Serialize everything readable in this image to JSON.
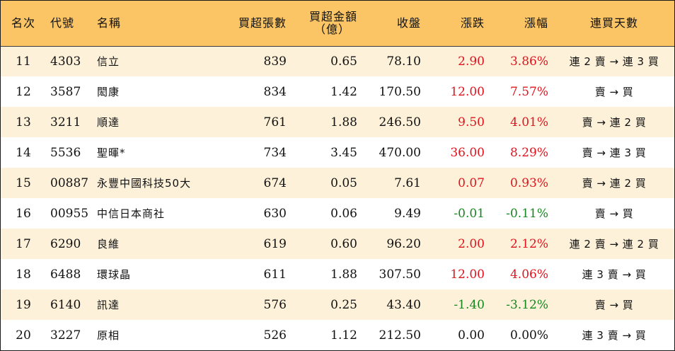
{
  "colors": {
    "header_bg": "#fbc566",
    "odd_row_bg": "#fdf1d9",
    "even_row_bg": "#ffffff",
    "up": "#e0141e",
    "down": "#16871f",
    "flat": "#111111"
  },
  "header": {
    "rank": "名次",
    "code": "代號",
    "name": "名稱",
    "net_lots": "買超張數",
    "net_amount_line1": "買超金額",
    "net_amount_line2": "（億）",
    "close": "收盤",
    "change": "漲跌",
    "change_pct": "漲幅",
    "streak": "連買天數"
  },
  "rows": [
    {
      "rank": "11",
      "code": "4303",
      "name": "信立",
      "net_lots": "839",
      "net_amount": "0.65",
      "close": "78.10",
      "change": "2.90",
      "change_pct": "3.86%",
      "direction": "up",
      "streak": "連 2 賣 → 連 3 買"
    },
    {
      "rank": "12",
      "code": "3587",
      "name": "閎康",
      "net_lots": "834",
      "net_amount": "1.42",
      "close": "170.50",
      "change": "12.00",
      "change_pct": "7.57%",
      "direction": "up",
      "streak": "賣 → 買"
    },
    {
      "rank": "13",
      "code": "3211",
      "name": "順達",
      "net_lots": "761",
      "net_amount": "1.88",
      "close": "246.50",
      "change": "9.50",
      "change_pct": "4.01%",
      "direction": "up",
      "streak": "賣 → 連 2 買"
    },
    {
      "rank": "14",
      "code": "5536",
      "name": "聖暉*",
      "net_lots": "734",
      "net_amount": "3.45",
      "close": "470.00",
      "change": "36.00",
      "change_pct": "8.29%",
      "direction": "up",
      "streak": "賣 → 連 3 買"
    },
    {
      "rank": "15",
      "code": "00887",
      "name": "永豐中國科技50大",
      "net_lots": "674",
      "net_amount": "0.05",
      "close": "7.61",
      "change": "0.07",
      "change_pct": "0.93%",
      "direction": "up",
      "streak": "賣 → 連 2 買"
    },
    {
      "rank": "16",
      "code": "00955",
      "name": "中信日本商社",
      "net_lots": "630",
      "net_amount": "0.06",
      "close": "9.49",
      "change": "-0.01",
      "change_pct": "-0.11%",
      "direction": "down",
      "streak": "賣 → 買"
    },
    {
      "rank": "17",
      "code": "6290",
      "name": "良維",
      "net_lots": "619",
      "net_amount": "0.60",
      "close": "96.20",
      "change": "2.00",
      "change_pct": "2.12%",
      "direction": "up",
      "streak": "連 2 賣 → 連 2 買"
    },
    {
      "rank": "18",
      "code": "6488",
      "name": "環球晶",
      "net_lots": "611",
      "net_amount": "1.88",
      "close": "307.50",
      "change": "12.00",
      "change_pct": "4.06%",
      "direction": "up",
      "streak": "連 3 賣 → 買"
    },
    {
      "rank": "19",
      "code": "6140",
      "name": "訊達",
      "net_lots": "576",
      "net_amount": "0.25",
      "close": "43.40",
      "change": "-1.40",
      "change_pct": "-3.12%",
      "direction": "down",
      "streak": "賣 → 買"
    },
    {
      "rank": "20",
      "code": "3227",
      "name": "原相",
      "net_lots": "526",
      "net_amount": "1.12",
      "close": "212.50",
      "change": "0.00",
      "change_pct": "0.00%",
      "direction": "flat",
      "streak": "連 3 賣 → 買"
    }
  ]
}
